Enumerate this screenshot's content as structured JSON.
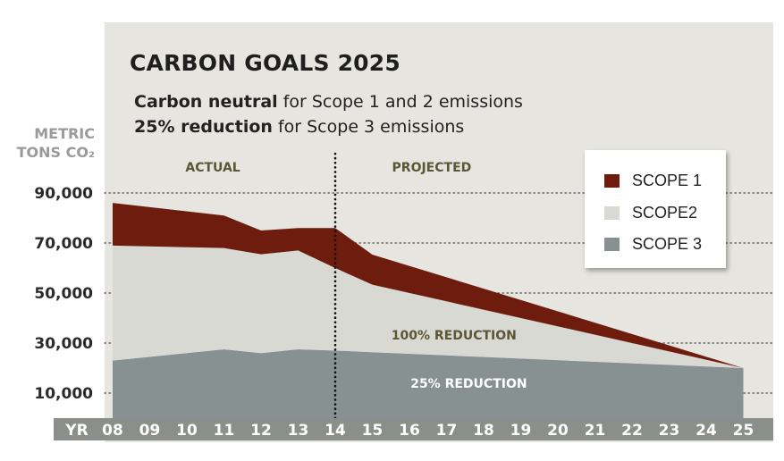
{
  "chart_data": {
    "type": "area",
    "title": "CARBON GOALS 2025",
    "subtitle_lines": [
      {
        "bold": "Carbon neutral",
        "rest": " for Scope 1 and 2 emissions"
      },
      {
        "bold": "25% reduction",
        "rest": " for Scope 3 emissions"
      }
    ],
    "ylabel_lines": [
      "METRIC",
      "TONS CO₂"
    ],
    "xlabel": "YR",
    "x": [
      "08",
      "09",
      "10",
      "11",
      "12",
      "13",
      "14",
      "15",
      "16",
      "17",
      "18",
      "19",
      "20",
      "21",
      "22",
      "23",
      "24",
      "25"
    ],
    "ylim": [
      0,
      100000
    ],
    "yticks": [
      10000,
      30000,
      50000,
      70000,
      90000
    ],
    "ytick_labels": [
      "10,000",
      "30,000",
      "50,000",
      "70,000",
      "90,000"
    ],
    "stacked": true,
    "series": [
      {
        "name": "SCOPE 3",
        "color": "#879191",
        "points": [
          [
            8,
            23000
          ],
          [
            11,
            27500
          ],
          [
            12,
            26000
          ],
          [
            13,
            27500
          ],
          [
            14,
            27000
          ],
          [
            25,
            20000
          ]
        ]
      },
      {
        "name": "SCOPE2",
        "color": "#d9d9d3",
        "points": [
          [
            8,
            46000
          ],
          [
            11,
            40500
          ],
          [
            12,
            39500
          ],
          [
            13,
            39500
          ],
          [
            14,
            33000
          ],
          [
            15,
            27000
          ],
          [
            25,
            0
          ]
        ]
      },
      {
        "name": "SCOPE 1",
        "color": "#6e1c0e",
        "points": [
          [
            8,
            17000
          ],
          [
            11,
            13000
          ],
          [
            12,
            9500
          ],
          [
            13,
            9000
          ],
          [
            14,
            16000
          ],
          [
            15,
            12000
          ],
          [
            25,
            0
          ]
        ]
      }
    ],
    "legend": [
      {
        "label": "SCOPE 1",
        "color": "#6e1c0e"
      },
      {
        "label": "SCOPE2",
        "color": "#d9d9d3"
      },
      {
        "label": "SCOPE 3",
        "color": "#879191"
      }
    ],
    "legend_position": "top-right",
    "divider_year": 14,
    "period_labels": {
      "actual": "ACTUAL",
      "projected": "PROJECTED"
    },
    "annotations": {
      "scope2_label": "100% REDUCTION",
      "scope3_label": "25% REDUCTION"
    },
    "grid": {
      "horizontal": true,
      "style": "dotted"
    }
  }
}
